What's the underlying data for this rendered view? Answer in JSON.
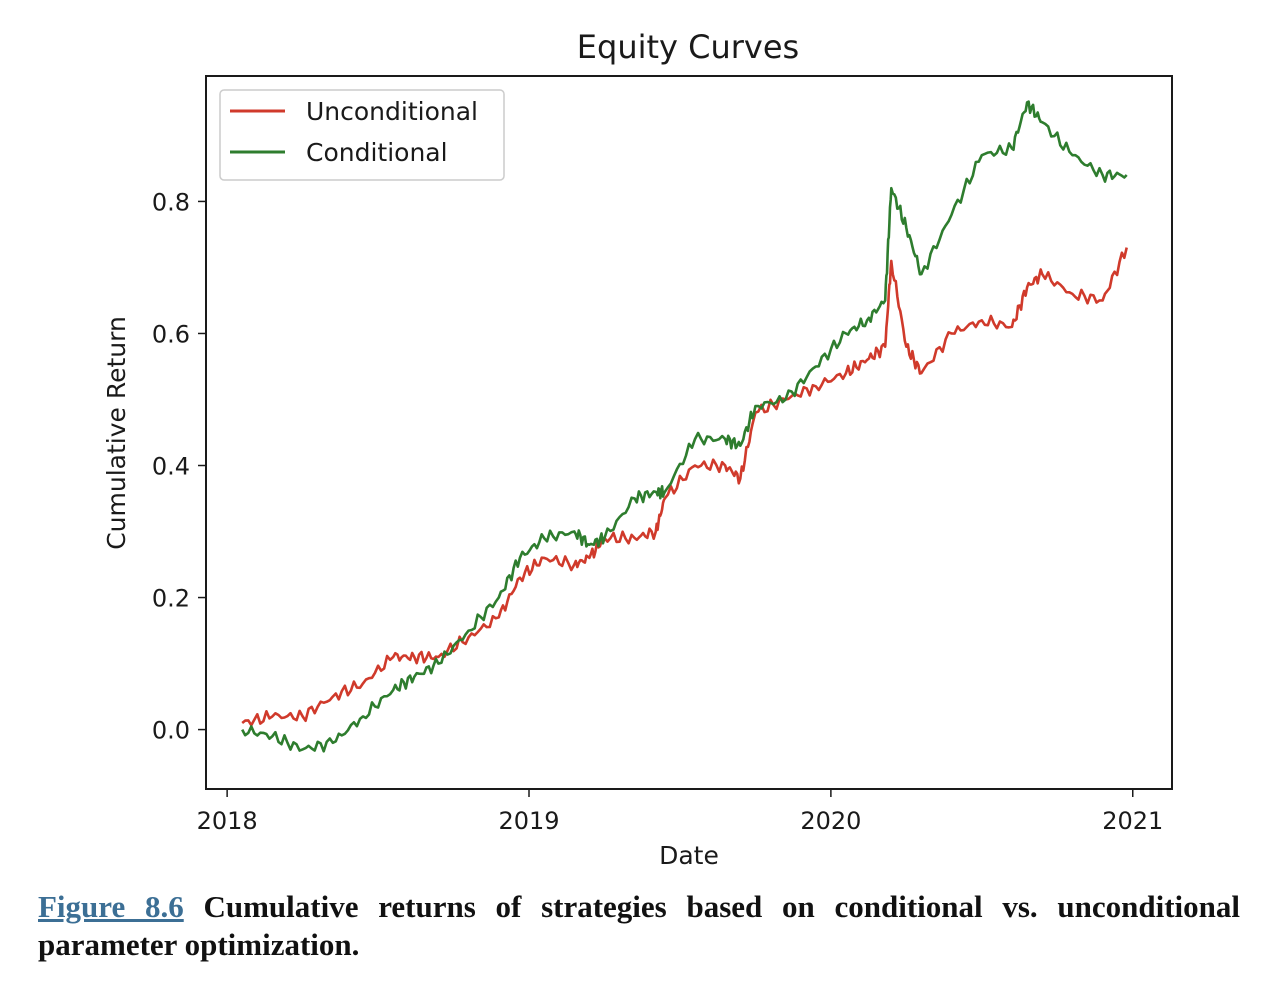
{
  "chart_data": {
    "type": "line",
    "title": "Equity Curves",
    "xlabel": "Date",
    "ylabel": "Cumulative Return",
    "x_ticks": [
      "2018",
      "2019",
      "2020",
      "2021"
    ],
    "y_ticks": [
      "0.0",
      "0.2",
      "0.4",
      "0.6",
      "0.8"
    ],
    "xlim": [
      2017.93,
      2021.13
    ],
    "ylim": [
      -0.09,
      0.99
    ],
    "grid": false,
    "legend_position": "upper-left",
    "x": [
      2018.05,
      2018.15,
      2018.25,
      2018.35,
      2018.45,
      2018.55,
      2018.62,
      2018.7,
      2018.8,
      2018.9,
      2018.97,
      2019.05,
      2019.15,
      2019.2,
      2019.25,
      2019.35,
      2019.42,
      2019.45,
      2019.55,
      2019.65,
      2019.7,
      2019.75,
      2019.85,
      2019.95,
      2020.05,
      2020.12,
      2020.18,
      2020.2,
      2020.25,
      2020.3,
      2020.4,
      2020.5,
      2020.6,
      2020.65,
      2020.7,
      2020.8,
      2020.9,
      2020.98
    ],
    "series": [
      {
        "name": "Unconditional",
        "color": "#d03a2b",
        "values": [
          0.01,
          0.02,
          0.02,
          0.05,
          0.07,
          0.11,
          0.11,
          0.11,
          0.14,
          0.17,
          0.23,
          0.26,
          0.25,
          0.26,
          0.29,
          0.29,
          0.3,
          0.35,
          0.4,
          0.4,
          0.38,
          0.48,
          0.5,
          0.52,
          0.54,
          0.56,
          0.58,
          0.71,
          0.58,
          0.54,
          0.6,
          0.62,
          0.61,
          0.67,
          0.69,
          0.66,
          0.65,
          0.73
        ]
      },
      {
        "name": "Conditional",
        "color": "#2e7d2e",
        "values": [
          0.0,
          -0.01,
          -0.03,
          -0.02,
          0.02,
          0.06,
          0.08,
          0.1,
          0.15,
          0.2,
          0.26,
          0.29,
          0.3,
          0.28,
          0.29,
          0.35,
          0.36,
          0.36,
          0.44,
          0.44,
          0.43,
          0.49,
          0.5,
          0.55,
          0.6,
          0.62,
          0.65,
          0.82,
          0.76,
          0.69,
          0.78,
          0.87,
          0.88,
          0.95,
          0.92,
          0.87,
          0.84,
          0.84
        ]
      }
    ]
  },
  "caption": {
    "figure_ref": "Figure 8.6",
    "text": " Cumulative returns of strategies based on conditional vs. unconditional parameter optimization."
  }
}
